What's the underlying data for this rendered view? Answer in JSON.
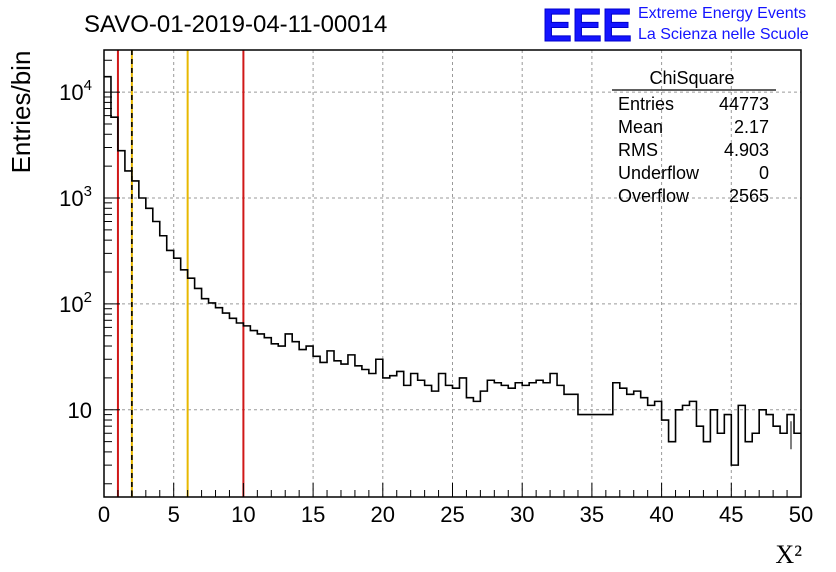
{
  "chart_data": {
    "type": "line",
    "title": "SAVO-01-2019-04-11-00014",
    "xlabel": "X²",
    "ylabel": "Entries/bin",
    "xlim": [
      0,
      50
    ],
    "ylim": [
      1.5,
      25000
    ],
    "yscale": "log",
    "grid": true,
    "x_ticks": [
      "0",
      "5",
      "10",
      "15",
      "20",
      "25",
      "30",
      "35",
      "40",
      "45",
      "50"
    ],
    "y_ticks": [
      {
        "base": "10",
        "exp": "",
        "value": 10
      },
      {
        "base": "10",
        "exp": "2",
        "value": 100
      },
      {
        "base": "10",
        "exp": "3",
        "value": 1000
      },
      {
        "base": "10",
        "exp": "4",
        "value": 10000
      }
    ],
    "bin_width": 0.5,
    "bin_counts": [
      14000,
      5800,
      2800,
      1800,
      1450,
      1000,
      800,
      600,
      440,
      320,
      270,
      210,
      175,
      140,
      112,
      102,
      92,
      82,
      73,
      66,
      62,
      56,
      52,
      48,
      42,
      40,
      52,
      44,
      37,
      40,
      32,
      28,
      36,
      29,
      27,
      33,
      26,
      24,
      22,
      30,
      20,
      21,
      23,
      17,
      22,
      19,
      17,
      15,
      22,
      17,
      16,
      20,
      13,
      12,
      15,
      19,
      18,
      17,
      16,
      18,
      17,
      18,
      19,
      18,
      22,
      17,
      14,
      14,
      9,
      9,
      9,
      9,
      9,
      18,
      16,
      14,
      15,
      13,
      11,
      12,
      8,
      5,
      10,
      11,
      12,
      7,
      5,
      10,
      6,
      9,
      3,
      11,
      5,
      6,
      10,
      9,
      7,
      6,
      9,
      6
    ],
    "vertical_lines": [
      {
        "x": 1,
        "color": "#d01818",
        "style": "solid"
      },
      {
        "x": 2,
        "color": "#e8b800",
        "style": "solid"
      },
      {
        "x": 2,
        "color": "#000000",
        "style": "dashed"
      },
      {
        "x": 6,
        "color": "#e8b800",
        "style": "solid"
      },
      {
        "x": 10,
        "color": "#d01818",
        "style": "solid"
      }
    ],
    "stats_box": {
      "title": "ChiSquare",
      "rows": [
        {
          "label": "Entries",
          "value": "44773"
        },
        {
          "label": "Mean",
          "value": "2.17"
        },
        {
          "label": "RMS",
          "value": "4.903"
        },
        {
          "label": "Underflow",
          "value": "0"
        },
        {
          "label": "Overflow",
          "value": "2565"
        }
      ]
    }
  },
  "logo": {
    "text": "EEE",
    "line1": "Extreme Energy Events",
    "line2": "La Scienza nelle Scuole",
    "color": "#1414ff"
  }
}
